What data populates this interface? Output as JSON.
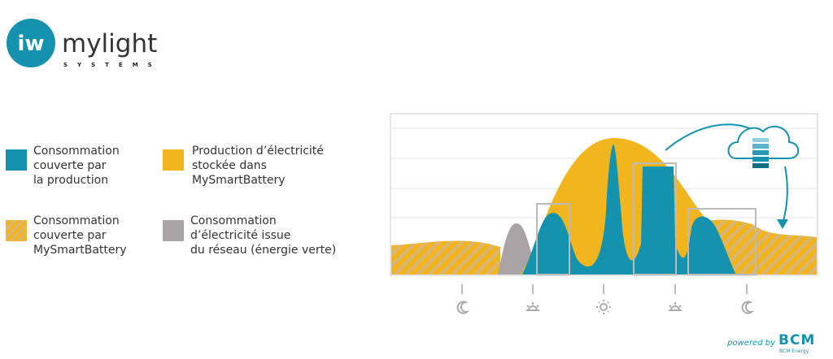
{
  "logo": {
    "mark": "iw",
    "name": "mylight",
    "tagline": "SYSTEMS"
  },
  "legend": {
    "items": [
      {
        "lines": [
          "Consommation",
          "couverte par",
          "la production"
        ]
      },
      {
        "lines": [
          "Production d’électricité",
          "stockée dans",
          "MySmartBattery"
        ]
      },
      {
        "lines": [
          "Consommation",
          "couverte par",
          "MySmartBattery"
        ]
      },
      {
        "lines": [
          "Consommation",
          "d’électricité issue",
          "du réseau (énergie verte)"
        ]
      }
    ]
  },
  "footer": {
    "powered_by": "powered by",
    "brand": "BCM",
    "brand_sub": "BCM Energy"
  }
}
